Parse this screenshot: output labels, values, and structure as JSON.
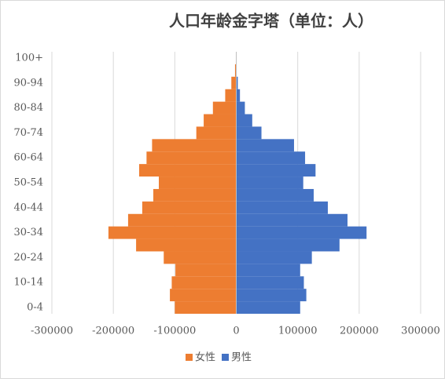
{
  "chart_data": {
    "type": "bar",
    "orientation": "horizontal",
    "title": "人口年龄金字塔（单位：人）",
    "categories": [
      "0-4",
      null,
      "10-14",
      null,
      "20-24",
      null,
      "30-34",
      null,
      "40-44",
      null,
      "50-54",
      null,
      "60-64",
      null,
      "70-74",
      null,
      "80-84",
      null,
      "90-94",
      null,
      "100+"
    ],
    "series": [
      {
        "name": "女性",
        "color": "#ed7d31",
        "values": [
          -100000,
          -108000,
          -105000,
          -99000,
          -118000,
          -163000,
          -208000,
          -176000,
          -153000,
          -135000,
          -126000,
          -158000,
          -146000,
          -137000,
          -65000,
          -53000,
          -38000,
          -18000,
          -8000,
          -2000,
          -500
        ]
      },
      {
        "name": "男性",
        "color": "#4472c4",
        "values": [
          104000,
          114000,
          110000,
          104000,
          123000,
          168000,
          212000,
          181000,
          149000,
          126000,
          109000,
          129000,
          112000,
          94000,
          41000,
          26000,
          14000,
          6000,
          2500,
          700,
          200
        ]
      }
    ],
    "xlim": [
      -300000,
      300000
    ],
    "xticks": [
      -300000,
      -200000,
      -100000,
      0,
      100000,
      200000,
      300000
    ],
    "grid": true,
    "legend": "bottom"
  }
}
